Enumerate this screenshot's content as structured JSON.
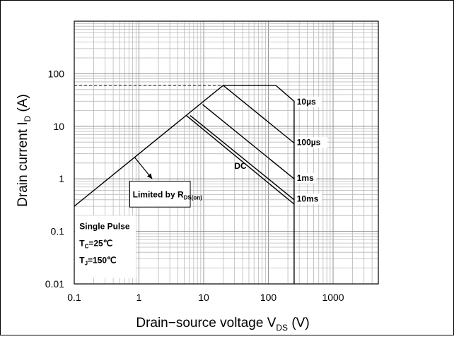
{
  "chart_data": {
    "type": "line",
    "x_scale": "log",
    "y_scale": "log",
    "xlim": [
      0.1,
      5000
    ],
    "ylim": [
      0.01,
      1000
    ],
    "grid": true,
    "xlabel": {
      "main": "Drain−source voltage V",
      "sub": "DS",
      "unit": " (V)"
    },
    "ylabel": {
      "main": "Drain current I",
      "sub": "D",
      "unit": " (A)"
    },
    "x_ticks": [
      {
        "value": 0.1,
        "label": "0.1"
      },
      {
        "value": 1,
        "label": "1"
      },
      {
        "value": 10,
        "label": "10"
      },
      {
        "value": 100,
        "label": "100"
      },
      {
        "value": 1000,
        "label": "1000"
      }
    ],
    "y_ticks": [
      {
        "value": 0.01,
        "label": "0.01"
      },
      {
        "value": 0.1,
        "label": "0.1"
      },
      {
        "value": 1,
        "label": "1"
      },
      {
        "value": 10,
        "label": "10"
      },
      {
        "value": 100,
        "label": "100"
      }
    ],
    "series": [
      {
        "name": "Limited by R",
        "name_sub": "DS(on)",
        "points": [
          [
            0.1,
            0.3
          ],
          [
            20,
            60
          ]
        ]
      },
      {
        "name": "DC",
        "points": [
          [
            5.4,
            16
          ],
          [
            250,
            0.33
          ]
        ]
      },
      {
        "name": "10ms",
        "points": [
          [
            6.2,
            16
          ],
          [
            250,
            0.4
          ]
        ]
      },
      {
        "name": "1ms",
        "points": [
          [
            9.6,
            26
          ],
          [
            250,
            1.0
          ]
        ]
      },
      {
        "name": "100µs",
        "points": [
          [
            20,
            60
          ],
          [
            250,
            4.8
          ]
        ]
      },
      {
        "name": "10µs",
        "points": [
          [
            20,
            60
          ],
          [
            130,
            60
          ],
          [
            250,
            30
          ],
          [
            250,
            0.01
          ]
        ]
      }
    ],
    "current_limit": {
      "value": 60,
      "x_range": [
        0.1,
        20
      ]
    },
    "annotations": {
      "limited_by": {
        "text": "Limited by R",
        "sub": "DS(on)",
        "arrow_from": [
          0.85,
          2.6
        ],
        "arrow_to": [
          1.6,
          1.0
        ]
      },
      "conditions": [
        {
          "text": "Single Pulse"
        },
        {
          "text": "T",
          "sub": "C",
          "rest": "=25℃"
        },
        {
          "text": "T",
          "sub": "J",
          "rest": "=150℃"
        }
      ]
    }
  }
}
